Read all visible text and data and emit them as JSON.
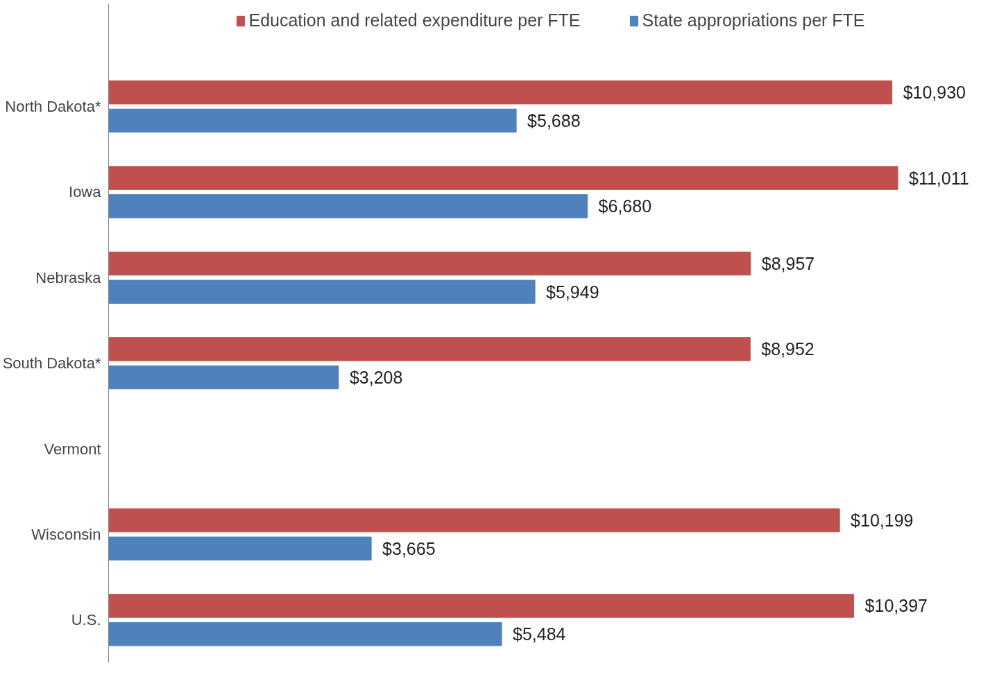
{
  "chart_data": {
    "type": "bar",
    "orientation": "horizontal",
    "categories": [
      "North Dakota*",
      "Iowa",
      "Nebraska",
      "South Dakota*",
      "Vermont",
      "Wisconsin",
      "U.S."
    ],
    "series": [
      {
        "name": "Education and related expenditure per FTE",
        "color": "#c0504d",
        "values": [
          10930,
          11011,
          8957,
          8952,
          null,
          10199,
          10397
        ],
        "value_labels": [
          "$10,930",
          "$11,011",
          "$8,957",
          "$8,952",
          null,
          "$10,199",
          "$10,397"
        ]
      },
      {
        "name": "State appropriations per FTE",
        "color": "#4f81bd",
        "values": [
          5688,
          6680,
          5949,
          3208,
          null,
          3665,
          5484
        ],
        "value_labels": [
          "$5,688",
          "$6,680",
          "$5,949",
          "$3,208",
          null,
          "$3,665",
          "$5,484"
        ]
      }
    ],
    "legend": "top",
    "grid": false
  }
}
